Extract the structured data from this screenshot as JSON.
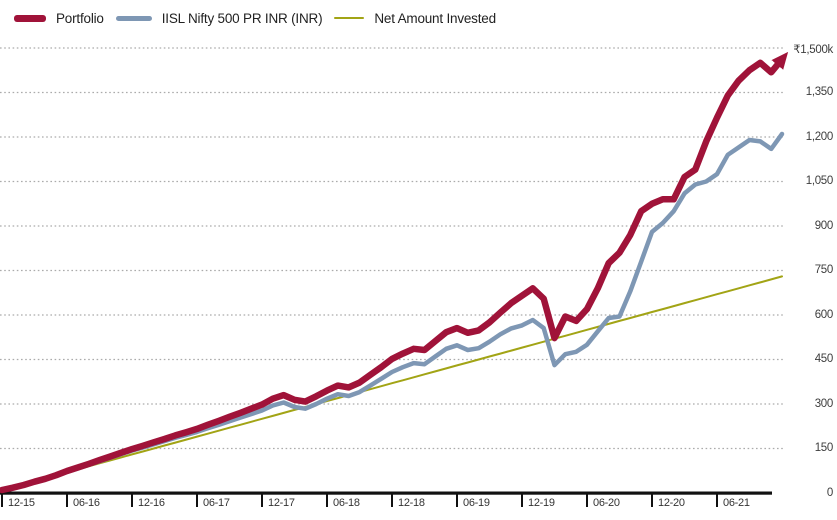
{
  "legend": {
    "items": [
      {
        "label": "Portfolio",
        "color": "#A01339"
      },
      {
        "label": "IISL Nifty 500 PR INR (INR)",
        "color": "#7E97B4"
      },
      {
        "label": "Net Amount Invested",
        "color": "#A2A415"
      }
    ]
  },
  "chart_data": {
    "type": "line",
    "title": "",
    "xlabel": "",
    "ylabel": "",
    "ylim": [
      0,
      1500
    ],
    "y_axis_side": "right",
    "y_unit": "thousand INR (k)",
    "grid": "horizontal-dotted",
    "y_tick_values": [
      1500,
      1350,
      1200,
      1050,
      900,
      750,
      600,
      450,
      300,
      150,
      0
    ],
    "y_tick_labels": [
      "₹1,500k",
      "1,350",
      "1,200",
      "1,050",
      "900",
      "750",
      "600",
      "450",
      "300",
      "150",
      "0"
    ],
    "x_tick_labels": [
      "12-15",
      "06-16",
      "12-16",
      "06-17",
      "12-17",
      "06-18",
      "12-18",
      "06-19",
      "12-19",
      "06-20",
      "12-20",
      "06-21"
    ],
    "points_per_x_tick": 6,
    "x_resolution": "monthly",
    "series": [
      {
        "name": "Portfolio",
        "color": "#A01339",
        "stroke_width": 6.5,
        "arrow_end": true,
        "values": [
          10,
          18,
          27,
          38,
          48,
          60,
          74,
          86,
          98,
          111,
          123,
          136,
          148,
          159,
          171,
          182,
          194,
          205,
          216,
          230,
          243,
          257,
          270,
          284,
          298,
          318,
          330,
          314,
          308,
          326,
          345,
          362,
          356,
          372,
          398,
          424,
          452,
          470,
          486,
          482,
          512,
          542,
          556,
          540,
          548,
          575,
          608,
          640,
          665,
          690,
          655,
          522,
          595,
          580,
          620,
          690,
          775,
          810,
          870,
          950,
          975,
          990,
          990,
          1065,
          1090,
          1185,
          1265,
          1340,
          1390,
          1425,
          1450,
          1418,
          1462
        ]
      },
      {
        "name": "IISL Nifty 500 PR INR (INR)",
        "color": "#7E97B4",
        "stroke_width": 4.5,
        "arrow_end": false,
        "values": [
          10,
          17,
          26,
          36,
          47,
          58,
          71,
          83,
          95,
          107,
          119,
          131,
          143,
          153,
          164,
          175,
          186,
          196,
          206,
          218,
          230,
          242,
          254,
          266,
          278,
          295,
          305,
          290,
          284,
          300,
          318,
          333,
          327,
          340,
          362,
          385,
          408,
          424,
          438,
          434,
          460,
          486,
          498,
          482,
          488,
          510,
          535,
          555,
          565,
          583,
          556,
          431,
          468,
          476,
          500,
          545,
          590,
          595,
          680,
          780,
          880,
          910,
          950,
          1010,
          1040,
          1050,
          1075,
          1140,
          1165,
          1190,
          1185,
          1160,
          1210
        ]
      },
      {
        "name": "Net Amount Invested",
        "color": "#A2A415",
        "stroke_width": 2,
        "arrow_end": false,
        "values": [
          10,
          20,
          30,
          40,
          50,
          60,
          70,
          80,
          90,
          100,
          110,
          120,
          130,
          140,
          150,
          160,
          170,
          180,
          190,
          200,
          210,
          220,
          230,
          240,
          250,
          260,
          270,
          280,
          290,
          300,
          310,
          320,
          330,
          340,
          350,
          360,
          370,
          380,
          390,
          400,
          410,
          420,
          430,
          440,
          450,
          460,
          470,
          480,
          490,
          500,
          510,
          520,
          530,
          540,
          550,
          560,
          570,
          580,
          590,
          600,
          610,
          620,
          630,
          640,
          650,
          660,
          670,
          680,
          690,
          700,
          710,
          720,
          730
        ]
      }
    ]
  }
}
